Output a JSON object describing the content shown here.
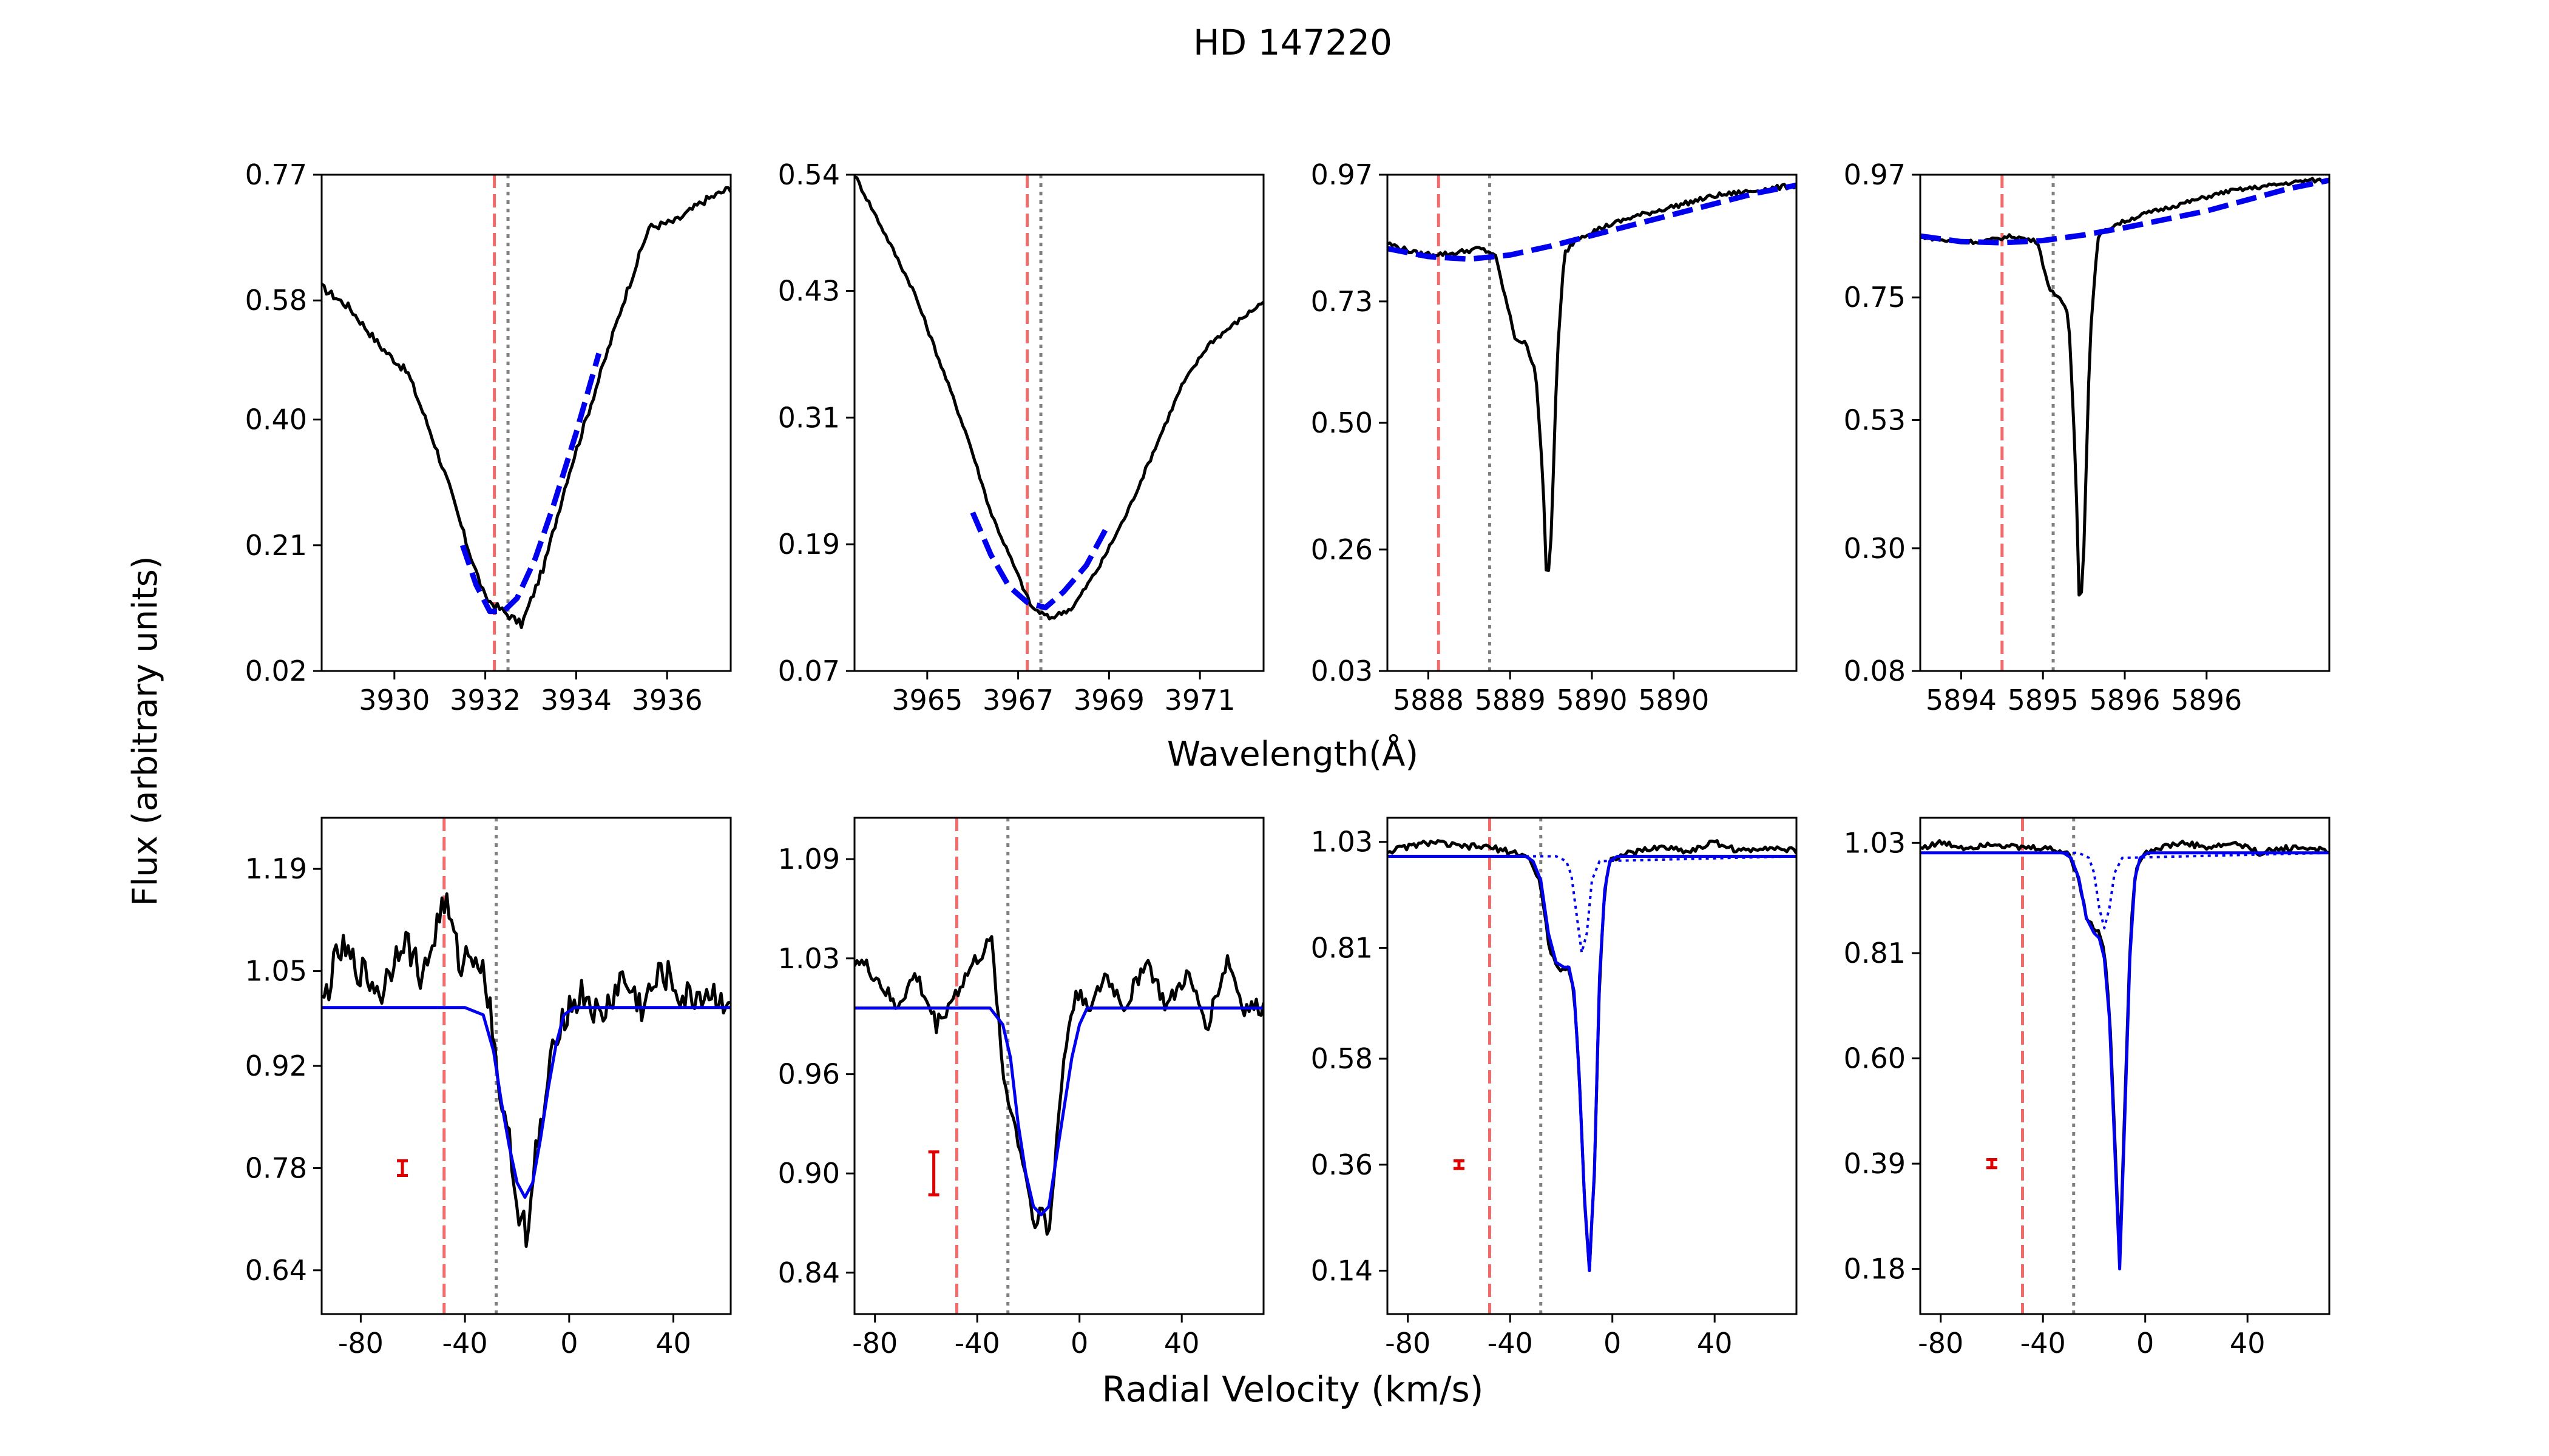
{
  "figure": {
    "title": "HD 147220",
    "ylabel": "Flux (arbitrary units)",
    "xlabel_top": "Wavelength(Å)",
    "xlabel_bottom": "Radial Velocity (km/s)"
  },
  "colors": {
    "spectrum": "#000000",
    "fit": "#0000ee",
    "red_line": "#f26b6b",
    "grey_line": "#808080",
    "errorbar": "#e00000"
  },
  "chart_data": [
    {
      "type": "line",
      "row": "top",
      "col": 0,
      "xlim": [
        3928.4,
        3937.4
      ],
      "ylim": [
        0.02,
        0.77
      ],
      "xticks": [
        3930,
        3932,
        3934,
        3936
      ],
      "xtick_labels": [
        "3930",
        "3932",
        "3934",
        "3936"
      ],
      "yticks": [
        0.02,
        0.21,
        0.4,
        0.58,
        0.77
      ],
      "ytick_labels": [
        "0.02",
        "0.21",
        "0.40",
        "0.58",
        "0.77"
      ],
      "vline_red": 3932.2,
      "vline_grey": 3932.5,
      "series": [
        {
          "name": "spectrum",
          "style": "solid",
          "x": [
            3928.4,
            3929.0,
            3929.7,
            3930.3,
            3930.8,
            3931.2,
            3931.6,
            3932.0,
            3932.4,
            3932.8,
            3933.3,
            3933.8,
            3934.4,
            3935.0,
            3935.6,
            3936.2,
            3936.8,
            3937.4
          ],
          "y": [
            0.6,
            0.57,
            0.51,
            0.47,
            0.38,
            0.3,
            0.21,
            0.13,
            0.11,
            0.09,
            0.18,
            0.31,
            0.44,
            0.57,
            0.69,
            0.7,
            0.73,
            0.75
          ],
          "noise": 0.008
        },
        {
          "name": "fit",
          "style": "dashed",
          "x": [
            3931.5,
            3931.8,
            3932.1,
            3932.4,
            3932.7,
            3933.1,
            3933.5,
            3934.0,
            3934.5
          ],
          "y": [
            0.21,
            0.15,
            0.11,
            0.11,
            0.13,
            0.19,
            0.27,
            0.38,
            0.5
          ]
        }
      ]
    },
    {
      "type": "line",
      "row": "top",
      "col": 1,
      "xlim": [
        3963.4,
        3972.4
      ],
      "ylim": [
        0.07,
        0.54
      ],
      "xticks": [
        3965,
        3967,
        3969,
        3971
      ],
      "xtick_labels": [
        "3965",
        "3967",
        "3969",
        "3971"
      ],
      "yticks": [
        0.07,
        0.19,
        0.31,
        0.43,
        0.54
      ],
      "ytick_labels": [
        "0.07",
        "0.19",
        "0.31",
        "0.43",
        "0.54"
      ],
      "vline_red": 3967.2,
      "vline_grey": 3967.5,
      "series": [
        {
          "name": "spectrum",
          "style": "solid",
          "x": [
            3963.4,
            3964.0,
            3964.7,
            3965.3,
            3965.9,
            3966.4,
            3966.9,
            3967.3,
            3967.7,
            3968.2,
            3968.8,
            3969.4,
            3970.0,
            3970.6,
            3971.2,
            3971.8,
            3972.4
          ],
          "y": [
            0.54,
            0.49,
            0.43,
            0.36,
            0.29,
            0.22,
            0.17,
            0.13,
            0.12,
            0.13,
            0.17,
            0.22,
            0.28,
            0.34,
            0.38,
            0.4,
            0.42
          ],
          "noise": 0.005
        },
        {
          "name": "fit",
          "style": "dashed",
          "x": [
            3966.0,
            3966.4,
            3966.8,
            3967.2,
            3967.6,
            3968.0,
            3968.5,
            3969.0
          ],
          "y": [
            0.22,
            0.18,
            0.15,
            0.135,
            0.13,
            0.145,
            0.17,
            0.21
          ]
        }
      ]
    },
    {
      "type": "line",
      "row": "top",
      "col": 2,
      "xlim": [
        5887.6,
        5891.6
      ],
      "ylim": [
        0.03,
        0.97
      ],
      "xticks": [
        5888.0,
        5888.8,
        5889.6,
        5890.4
      ],
      "xtick_labels": [
        "5888",
        "5889",
        "5890",
        "5890"
      ],
      "yticks": [
        0.03,
        0.26,
        0.5,
        0.73,
        0.97
      ],
      "ytick_labels": [
        "0.03",
        "0.26",
        "0.50",
        "0.73",
        "0.97"
      ],
      "vline_red": 5888.1,
      "vline_grey": 5888.6,
      "series": [
        {
          "name": "spectrum",
          "style": "solid",
          "x": [
            5887.6,
            5887.9,
            5888.2,
            5888.5,
            5888.65,
            5888.75,
            5888.85,
            5888.95,
            5889.05,
            5889.12,
            5889.16,
            5889.2,
            5889.26,
            5889.33,
            5889.45,
            5889.7,
            5890.0,
            5890.4,
            5890.8,
            5891.2,
            5891.6
          ],
          "y": [
            0.84,
            0.82,
            0.82,
            0.83,
            0.82,
            0.74,
            0.66,
            0.65,
            0.6,
            0.4,
            0.18,
            0.28,
            0.62,
            0.82,
            0.85,
            0.87,
            0.89,
            0.91,
            0.93,
            0.94,
            0.95
          ],
          "noise": 0.005
        },
        {
          "name": "fit",
          "style": "dashed",
          "x": [
            5887.6,
            5888.0,
            5888.4,
            5888.8,
            5889.2,
            5889.6,
            5890.0,
            5890.4,
            5890.8,
            5891.2,
            5891.6
          ],
          "y": [
            0.83,
            0.815,
            0.81,
            0.818,
            0.835,
            0.855,
            0.875,
            0.895,
            0.915,
            0.935,
            0.95
          ]
        }
      ]
    },
    {
      "type": "line",
      "row": "top",
      "col": 3,
      "xlim": [
        5893.6,
        5897.6
      ],
      "ylim": [
        0.08,
        0.97
      ],
      "xticks": [
        5894.0,
        5894.8,
        5895.6,
        5896.4
      ],
      "xtick_labels": [
        "5894",
        "5895",
        "5896",
        "5896"
      ],
      "yticks": [
        0.08,
        0.3,
        0.53,
        0.75,
        0.97
      ],
      "ytick_labels": [
        "0.08",
        "0.30",
        "0.53",
        "0.75",
        "0.97"
      ],
      "vline_red": 5894.4,
      "vline_grey": 5894.9,
      "series": [
        {
          "name": "spectrum",
          "style": "solid",
          "x": [
            5893.6,
            5893.9,
            5894.2,
            5894.5,
            5894.75,
            5894.85,
            5894.95,
            5895.05,
            5895.12,
            5895.16,
            5895.2,
            5895.26,
            5895.34,
            5895.5,
            5895.8,
            5896.2,
            5896.6,
            5897.0,
            5897.4,
            5897.6
          ],
          "y": [
            0.86,
            0.85,
            0.85,
            0.86,
            0.85,
            0.77,
            0.75,
            0.72,
            0.45,
            0.17,
            0.3,
            0.68,
            0.86,
            0.88,
            0.9,
            0.92,
            0.94,
            0.95,
            0.96,
            0.96
          ],
          "noise": 0.004
        },
        {
          "name": "fit",
          "style": "dashed",
          "x": [
            5893.6,
            5894.0,
            5894.4,
            5894.8,
            5895.2,
            5895.6,
            5896.0,
            5896.4,
            5896.8,
            5897.2,
            5897.6
          ],
          "y": [
            0.86,
            0.85,
            0.848,
            0.852,
            0.862,
            0.875,
            0.89,
            0.905,
            0.925,
            0.945,
            0.96
          ]
        }
      ]
    },
    {
      "type": "line",
      "row": "bottom",
      "col": 0,
      "xlim": [
        -95,
        62
      ],
      "ylim": [
        0.58,
        1.26
      ],
      "xticks": [
        -80,
        -40,
        0,
        40
      ],
      "xtick_labels": [
        "-80",
        "-40",
        "0",
        "40"
      ],
      "yticks": [
        0.64,
        0.78,
        0.92,
        1.05,
        1.19
      ],
      "ytick_labels": [
        "0.64",
        "0.78",
        "0.92",
        "1.05",
        "1.19"
      ],
      "vline_red": -48,
      "vline_grey": -28,
      "errorbar": {
        "x": -64,
        "y": 0.78,
        "err": 0.01
      },
      "series": [
        {
          "name": "spectrum",
          "style": "solid",
          "x": [
            -95,
            -88,
            -80,
            -72,
            -64,
            -56,
            -48,
            -42,
            -36,
            -31,
            -28,
            -25,
            -22,
            -20,
            -18,
            -16,
            -13,
            -10,
            -7,
            -4,
            0,
            6,
            12,
            20,
            28,
            36,
            44,
            52,
            62
          ],
          "y": [
            1.0,
            1.08,
            1.05,
            1.02,
            1.1,
            1.04,
            1.15,
            1.06,
            1.08,
            1.02,
            0.93,
            0.84,
            0.8,
            0.72,
            0.73,
            0.66,
            0.8,
            0.85,
            0.92,
            0.98,
            1.0,
            1.02,
            0.98,
            1.04,
            1.0,
            1.05,
            1.01,
            1.02,
            1.01
          ],
          "noise": 0.035
        },
        {
          "name": "fit",
          "style": "solid",
          "x": [
            -95,
            -40,
            -33,
            -29,
            -26,
            -23,
            -20,
            -17,
            -14,
            -11,
            -8,
            -5,
            -2,
            2,
            62
          ],
          "y": [
            1.0,
            1.0,
            0.99,
            0.94,
            0.87,
            0.81,
            0.76,
            0.74,
            0.76,
            0.82,
            0.89,
            0.95,
            0.99,
            1.0,
            1.0
          ]
        }
      ]
    },
    {
      "type": "line",
      "row": "bottom",
      "col": 1,
      "xlim": [
        -88,
        72
      ],
      "ylim": [
        0.815,
        1.115
      ],
      "xticks": [
        -80,
        -40,
        0,
        40
      ],
      "xtick_labels": [
        "-80",
        "-40",
        "0",
        "40"
      ],
      "yticks": [
        0.84,
        0.9,
        0.96,
        1.03,
        1.09
      ],
      "ytick_labels": [
        "0.84",
        "0.90",
        "0.96",
        "1.03",
        "1.09"
      ],
      "vline_red": -48,
      "vline_grey": -28,
      "errorbar": {
        "x": -57,
        "y": 0.9,
        "err": 0.013
      },
      "series": [
        {
          "name": "spectrum",
          "style": "solid",
          "x": [
            -88,
            -80,
            -72,
            -64,
            -56,
            -48,
            -40,
            -34,
            -30,
            -27,
            -24,
            -21,
            -18,
            -15,
            -12,
            -9,
            -6,
            -3,
            0,
            5,
            10,
            18,
            26,
            34,
            42,
            50,
            58,
            64,
            72
          ],
          "y": [
            1.03,
            1.02,
            1.0,
            1.02,
            0.99,
            1.01,
            1.03,
            1.04,
            0.96,
            0.94,
            0.92,
            0.9,
            0.87,
            0.88,
            0.86,
            0.92,
            0.97,
            1.0,
            1.01,
            1.0,
            1.02,
            1.0,
            1.03,
            1.0,
            1.02,
            0.99,
            1.03,
            1.0,
            1.0
          ],
          "noise": 0.018
        },
        {
          "name": "fit",
          "style": "solid",
          "x": [
            -88,
            -35,
            -30,
            -27,
            -24,
            -21,
            -18,
            -15,
            -12,
            -9,
            -6,
            -3,
            0,
            3,
            72
          ],
          "y": [
            1.0,
            1.0,
            0.99,
            0.97,
            0.93,
            0.9,
            0.88,
            0.875,
            0.88,
            0.91,
            0.94,
            0.97,
            0.99,
            1.0,
            1.0
          ]
        }
      ]
    },
    {
      "type": "line",
      "row": "bottom",
      "col": 2,
      "xlim": [
        -88,
        72
      ],
      "ylim": [
        0.05,
        1.08
      ],
      "xticks": [
        -80,
        -40,
        0,
        40
      ],
      "xtick_labels": [
        "-80",
        "-40",
        "0",
        "40"
      ],
      "yticks": [
        0.14,
        0.36,
        0.58,
        0.81,
        1.03
      ],
      "ytick_labels": [
        "0.14",
        "0.36",
        "0.58",
        "0.81",
        "1.03"
      ],
      "vline_red": -48,
      "vline_grey": -28,
      "errorbar": {
        "x": -60,
        "y": 0.36,
        "err": 0.008
      },
      "series": [
        {
          "name": "spectrum",
          "style": "solid",
          "x": [
            -88,
            -80,
            -70,
            -60,
            -50,
            -40,
            -33,
            -28,
            -25,
            -22,
            -19,
            -17,
            -15,
            -13,
            -11,
            -9,
            -7,
            -5,
            -3,
            -1,
            2,
            10,
            20,
            30,
            40,
            50,
            60,
            72
          ],
          "y": [
            1.01,
            1.02,
            1.03,
            1.02,
            1.02,
            1.01,
            1.0,
            0.94,
            0.82,
            0.77,
            0.76,
            0.77,
            0.72,
            0.55,
            0.3,
            0.14,
            0.35,
            0.75,
            0.93,
            0.99,
            1.0,
            1.01,
            1.02,
            1.01,
            1.03,
            1.01,
            1.02,
            1.01
          ],
          "noise": 0.006
        },
        {
          "name": "fit",
          "style": "solid",
          "x": [
            -88,
            -34,
            -31,
            -28,
            -25,
            -22,
            -19,
            -17,
            -15,
            -13,
            -11,
            -9,
            -7,
            -5,
            -3,
            -1,
            2,
            72
          ],
          "y": [
            1.0,
            1.0,
            0.99,
            0.95,
            0.84,
            0.78,
            0.77,
            0.77,
            0.72,
            0.55,
            0.3,
            0.14,
            0.35,
            0.75,
            0.93,
            0.99,
            1.0,
            1.0
          ]
        },
        {
          "name": "component",
          "style": "dotted",
          "x": [
            -88,
            -22,
            -18,
            -16,
            -14,
            -12,
            -10,
            -8,
            -5,
            72
          ],
          "y": [
            1.0,
            1.0,
            0.99,
            0.96,
            0.88,
            0.8,
            0.84,
            0.95,
            0.99,
            1.0
          ]
        }
      ]
    },
    {
      "type": "line",
      "row": "bottom",
      "col": 3,
      "xlim": [
        -88,
        72
      ],
      "ylim": [
        0.09,
        1.08
      ],
      "xticks": [
        -80,
        -40,
        0,
        40
      ],
      "xtick_labels": [
        "-80",
        "-40",
        "0",
        "40"
      ],
      "yticks": [
        0.18,
        0.39,
        0.6,
        0.81,
        1.03
      ],
      "ytick_labels": [
        "0.18",
        "0.39",
        "0.60",
        "0.81",
        "1.03"
      ],
      "vline_red": -48,
      "vline_grey": -28,
      "errorbar": {
        "x": -60,
        "y": 0.39,
        "err": 0.008
      },
      "series": [
        {
          "name": "spectrum",
          "style": "solid",
          "x": [
            -88,
            -80,
            -70,
            -60,
            -50,
            -40,
            -30,
            -26,
            -23,
            -20,
            -18,
            -16,
            -14,
            -12,
            -10,
            -8,
            -6,
            -4,
            -2,
            0,
            5,
            15,
            25,
            35,
            45,
            55,
            65,
            72
          ],
          "y": [
            1.02,
            1.03,
            1.02,
            1.03,
            1.02,
            1.02,
            1.01,
            0.96,
            0.88,
            0.86,
            0.85,
            0.82,
            0.7,
            0.45,
            0.2,
            0.5,
            0.82,
            0.97,
            1.0,
            1.01,
            1.02,
            1.03,
            1.02,
            1.03,
            1.01,
            1.02,
            1.02,
            1.01
          ],
          "noise": 0.006
        },
        {
          "name": "fit",
          "style": "solid",
          "x": [
            -88,
            -32,
            -29,
            -26,
            -23,
            -20,
            -18,
            -16,
            -14,
            -12,
            -10,
            -8,
            -6,
            -4,
            -2,
            1,
            72
          ],
          "y": [
            1.01,
            1.01,
            1.0,
            0.96,
            0.88,
            0.85,
            0.84,
            0.8,
            0.68,
            0.43,
            0.18,
            0.48,
            0.8,
            0.96,
            1.0,
            1.01,
            1.01
          ]
        },
        {
          "name": "component",
          "style": "dotted",
          "x": [
            -88,
            -26,
            -22,
            -20,
            -18,
            -16,
            -14,
            -12,
            -9,
            72
          ],
          "y": [
            1.01,
            1.01,
            1.0,
            0.97,
            0.9,
            0.86,
            0.9,
            0.97,
            1.0,
            1.01
          ]
        }
      ]
    }
  ]
}
